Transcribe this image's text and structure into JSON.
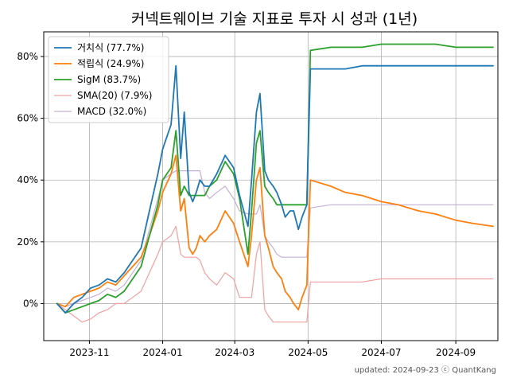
{
  "chart_data": {
    "type": "line",
    "title": "커넥트웨이브 기술 지표로 투자 시 성과 (1년)",
    "footer": "updated: 2024-09-23 ⓒ QuantKang",
    "xlabel": "",
    "ylabel": "",
    "x_ticks": [
      "2023-11",
      "2024-01",
      "2024-03",
      "2024-05",
      "2024-07",
      "2024-09"
    ],
    "x_tick_dates": [
      "2023-11-01",
      "2024-01-01",
      "2024-03-01",
      "2024-05-01",
      "2024-07-01",
      "2024-09-01"
    ],
    "xlim": [
      "2023-09-24",
      "2024-10-06"
    ],
    "y_ticks": [
      "0%",
      "20%",
      "40%",
      "60%",
      "80%"
    ],
    "y_tick_values": [
      0,
      20,
      40,
      60,
      80
    ],
    "ylim": [
      -12,
      88
    ],
    "grid": true,
    "legend_position": "top-left",
    "series": [
      {
        "name": "거치식 (77.7%)",
        "color": "#1f77b4",
        "width": 1.8,
        "x": [
          "2023-10-05",
          "2023-10-12",
          "2023-10-19",
          "2023-10-26",
          "2023-11-02",
          "2023-11-09",
          "2023-11-16",
          "2023-11-23",
          "2023-11-30",
          "2023-12-07",
          "2023-12-14",
          "2023-12-21",
          "2023-12-28",
          "2024-01-01",
          "2024-01-08",
          "2024-01-12",
          "2024-01-16",
          "2024-01-19",
          "2024-01-23",
          "2024-01-26",
          "2024-01-29",
          "2024-02-01",
          "2024-02-05",
          "2024-02-09",
          "2024-02-15",
          "2024-02-22",
          "2024-02-29",
          "2024-03-05",
          "2024-03-12",
          "2024-03-15",
          "2024-03-19",
          "2024-03-22",
          "2024-03-26",
          "2024-03-29",
          "2024-04-02",
          "2024-04-05",
          "2024-04-09",
          "2024-04-12",
          "2024-04-16",
          "2024-04-19",
          "2024-04-23",
          "2024-04-26",
          "2024-04-30",
          "2024-05-03",
          "2024-05-10",
          "2024-05-20",
          "2024-06-01",
          "2024-06-15",
          "2024-07-01",
          "2024-07-15",
          "2024-08-01",
          "2024-08-15",
          "2024-09-01",
          "2024-09-15",
          "2024-10-02"
        ],
        "y": [
          0,
          -3,
          0,
          2,
          5,
          6,
          8,
          7,
          10,
          14,
          18,
          30,
          42,
          50,
          58,
          77,
          47,
          62,
          36,
          33,
          36,
          40,
          38,
          38,
          42,
          48,
          44,
          35,
          25,
          40,
          62,
          68,
          43,
          40,
          38,
          36,
          32,
          28,
          30,
          30,
          24,
          28,
          32,
          76,
          76,
          76,
          76,
          77,
          77,
          77,
          77,
          77,
          77,
          77,
          77
        ]
      },
      {
        "name": "적립식 (24.9%)",
        "color": "#ff7f0e",
        "width": 1.8,
        "x": [
          "2023-10-05",
          "2023-10-12",
          "2023-10-19",
          "2023-10-26",
          "2023-11-02",
          "2023-11-09",
          "2023-11-16",
          "2023-11-23",
          "2023-11-30",
          "2023-12-07",
          "2023-12-14",
          "2023-12-21",
          "2023-12-28",
          "2024-01-01",
          "2024-01-08",
          "2024-01-12",
          "2024-01-16",
          "2024-01-19",
          "2024-01-23",
          "2024-01-26",
          "2024-01-29",
          "2024-02-01",
          "2024-02-05",
          "2024-02-09",
          "2024-02-15",
          "2024-02-22",
          "2024-02-29",
          "2024-03-05",
          "2024-03-12",
          "2024-03-15",
          "2024-03-19",
          "2024-03-22",
          "2024-03-26",
          "2024-03-29",
          "2024-04-02",
          "2024-04-05",
          "2024-04-09",
          "2024-04-12",
          "2024-04-16",
          "2024-04-19",
          "2024-04-23",
          "2024-04-26",
          "2024-04-30",
          "2024-05-03",
          "2024-05-20",
          "2024-06-01",
          "2024-06-15",
          "2024-07-01",
          "2024-07-15",
          "2024-08-01",
          "2024-08-15",
          "2024-09-01",
          "2024-09-15",
          "2024-10-02"
        ],
        "y": [
          0,
          -1,
          2,
          3,
          4,
          5,
          7,
          6,
          9,
          12,
          15,
          22,
          30,
          36,
          42,
          48,
          30,
          34,
          18,
          16,
          18,
          22,
          20,
          22,
          24,
          30,
          26,
          20,
          12,
          22,
          40,
          44,
          22,
          18,
          12,
          10,
          8,
          4,
          2,
          0,
          -2,
          2,
          6,
          40,
          38,
          36,
          35,
          33,
          32,
          30,
          29,
          27,
          26,
          25
        ]
      },
      {
        "name": "SigM (83.7%)",
        "color": "#2ca02c",
        "width": 1.8,
        "x": [
          "2023-10-05",
          "2023-10-12",
          "2023-10-19",
          "2023-10-26",
          "2023-11-02",
          "2023-11-09",
          "2023-11-16",
          "2023-11-23",
          "2023-11-30",
          "2023-12-07",
          "2023-12-14",
          "2023-12-21",
          "2023-12-28",
          "2024-01-01",
          "2024-01-08",
          "2024-01-12",
          "2024-01-16",
          "2024-01-19",
          "2024-01-23",
          "2024-01-26",
          "2024-01-29",
          "2024-02-01",
          "2024-02-05",
          "2024-02-09",
          "2024-02-15",
          "2024-02-22",
          "2024-02-29",
          "2024-03-05",
          "2024-03-12",
          "2024-03-15",
          "2024-03-19",
          "2024-03-22",
          "2024-03-26",
          "2024-03-29",
          "2024-04-02",
          "2024-04-05",
          "2024-04-09",
          "2024-04-12",
          "2024-04-16",
          "2024-04-19",
          "2024-04-23",
          "2024-04-26",
          "2024-04-30",
          "2024-05-03",
          "2024-05-20",
          "2024-06-01",
          "2024-06-15",
          "2024-07-01",
          "2024-07-15",
          "2024-08-01",
          "2024-08-15",
          "2024-09-01",
          "2024-09-15",
          "2024-10-02"
        ],
        "y": [
          0,
          -3,
          -2,
          -1,
          0,
          1,
          3,
          2,
          4,
          8,
          12,
          22,
          32,
          40,
          44,
          56,
          35,
          38,
          35,
          35,
          35,
          35,
          35,
          38,
          40,
          46,
          42,
          34,
          16,
          30,
          52,
          56,
          38,
          36,
          34,
          32,
          32,
          32,
          32,
          32,
          32,
          32,
          32,
          82,
          83,
          83,
          83,
          84,
          84,
          84,
          84,
          83,
          83,
          83
        ]
      },
      {
        "name": "SMA(20) (7.9%)",
        "color": "#f0a0a0",
        "width": 1.2,
        "x": [
          "2023-10-05",
          "2023-10-12",
          "2023-10-19",
          "2023-10-26",
          "2023-11-02",
          "2023-11-09",
          "2023-11-16",
          "2023-11-23",
          "2023-11-30",
          "2023-12-07",
          "2023-12-14",
          "2023-12-21",
          "2023-12-28",
          "2024-01-01",
          "2024-01-08",
          "2024-01-12",
          "2024-01-16",
          "2024-01-19",
          "2024-01-23",
          "2024-01-26",
          "2024-01-29",
          "2024-02-01",
          "2024-02-05",
          "2024-02-09",
          "2024-02-15",
          "2024-02-22",
          "2024-02-29",
          "2024-03-05",
          "2024-03-12",
          "2024-03-15",
          "2024-03-19",
          "2024-03-22",
          "2024-03-26",
          "2024-03-29",
          "2024-04-02",
          "2024-04-05",
          "2024-04-09",
          "2024-04-12",
          "2024-04-16",
          "2024-04-19",
          "2024-04-23",
          "2024-04-26",
          "2024-04-30",
          "2024-05-03",
          "2024-05-20",
          "2024-06-01",
          "2024-06-15",
          "2024-07-01",
          "2024-07-15",
          "2024-08-01",
          "2024-08-15",
          "2024-09-01",
          "2024-09-15",
          "2024-10-02"
        ],
        "y": [
          0,
          -2,
          -4,
          -6,
          -5,
          -3,
          -2,
          0,
          0,
          2,
          4,
          10,
          16,
          20,
          22,
          25,
          16,
          15,
          15,
          15,
          15,
          14,
          10,
          8,
          6,
          10,
          8,
          2,
          2,
          2,
          16,
          20,
          -2,
          -4,
          -6,
          -6,
          -6,
          -6,
          -6,
          -6,
          -6,
          -6,
          -6,
          7,
          7,
          7,
          7,
          8,
          8,
          8,
          8,
          8,
          8,
          8
        ]
      },
      {
        "name": "MACD (32.0%)",
        "color": "#c5b0d5",
        "width": 1.2,
        "x": [
          "2023-10-05",
          "2023-10-12",
          "2023-10-19",
          "2023-10-26",
          "2023-11-02",
          "2023-11-09",
          "2023-11-16",
          "2023-11-23",
          "2023-11-30",
          "2023-12-07",
          "2023-12-14",
          "2023-12-21",
          "2023-12-28",
          "2024-01-01",
          "2024-01-08",
          "2024-01-12",
          "2024-01-16",
          "2024-01-19",
          "2024-01-23",
          "2024-01-26",
          "2024-01-29",
          "2024-02-01",
          "2024-02-05",
          "2024-02-09",
          "2024-02-15",
          "2024-02-22",
          "2024-02-29",
          "2024-03-05",
          "2024-03-12",
          "2024-03-15",
          "2024-03-19",
          "2024-03-22",
          "2024-03-26",
          "2024-03-29",
          "2024-04-02",
          "2024-04-05",
          "2024-04-09",
          "2024-04-12",
          "2024-04-16",
          "2024-04-19",
          "2024-04-23",
          "2024-04-26",
          "2024-04-30",
          "2024-05-03",
          "2024-05-20",
          "2024-06-01",
          "2024-06-15",
          "2024-07-01",
          "2024-07-15",
          "2024-08-01",
          "2024-08-15",
          "2024-09-01",
          "2024-09-15",
          "2024-10-02"
        ],
        "y": [
          0,
          -1,
          0,
          1,
          2,
          3,
          5,
          4,
          6,
          10,
          14,
          24,
          34,
          40,
          42,
          43,
          43,
          43,
          43,
          43,
          43,
          43,
          36,
          34,
          36,
          38,
          34,
          30,
          29,
          29,
          29,
          32,
          22,
          20,
          18,
          16,
          15,
          15,
          15,
          15,
          15,
          15,
          15,
          31,
          32,
          32,
          32,
          32,
          32,
          32,
          32,
          32,
          32,
          32
        ]
      }
    ]
  }
}
